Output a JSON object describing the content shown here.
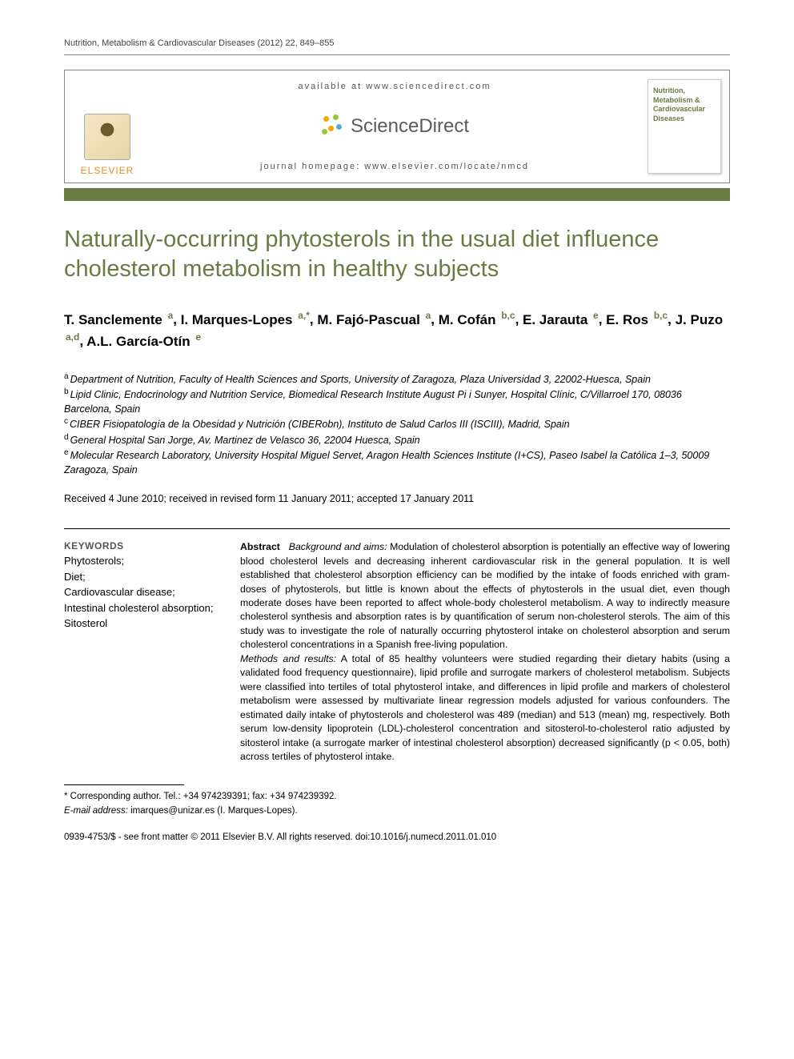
{
  "running_head": "Nutrition, Metabolism & Cardiovascular Diseases (2012) 22, 849–855",
  "masthead": {
    "available_line": "available at www.sciencedirect.com",
    "sd_word": "ScienceDirect",
    "homepage_line": "journal homepage: www.elsevier.com/locate/nmcd",
    "elsevier_word": "ELSEVIER",
    "journal_cover_title": "Nutrition, Metabolism & Cardiovascular Diseases"
  },
  "article": {
    "title": "Naturally-occurring phytosterols in the usual diet influence cholesterol metabolism in healthy subjects",
    "authors_html_parts": [
      {
        "name": "T. Sanclemente",
        "sup": "a"
      },
      {
        "name": "I. Marques-Lopes",
        "sup": "a,*"
      },
      {
        "name": "M. Fajó-Pascual",
        "sup": "a"
      },
      {
        "name": "M. Cofán",
        "sup": "b,c"
      },
      {
        "name": "E. Jarauta",
        "sup": "e"
      },
      {
        "name": "E. Ros",
        "sup": "b,c"
      },
      {
        "name": "J. Puzo",
        "sup": "a,d"
      },
      {
        "name": "A.L. García-Otín",
        "sup": "e"
      }
    ],
    "affiliations": [
      {
        "key": "a",
        "text": "Department of Nutrition, Faculty of Health Sciences and Sports, University of Zaragoza, Plaza Universidad 3, 22002-Huesca, Spain"
      },
      {
        "key": "b",
        "text": "Lipid Clinic, Endocrinology and Nutrition Service, Biomedical Research Institute August Pi i Sunyer, Hospital Clínic, C/Villarroel 170, 08036 Barcelona, Spain"
      },
      {
        "key": "c",
        "text": "CIBER Fisiopatología de la Obesidad y Nutrición (CIBERobn), Instituto de Salud Carlos III (ISCIII), Madrid, Spain"
      },
      {
        "key": "d",
        "text": "General Hospital San Jorge, Av. Martinez de Velasco 36, 22004 Huesca, Spain"
      },
      {
        "key": "e",
        "text": "Molecular Research Laboratory, University Hospital Miguel Servet, Aragon Health Sciences Institute (I+CS), Paseo Isabel la Católica 1–3, 50009 Zaragoza, Spain"
      }
    ],
    "history": "Received 4 June 2010; received in revised form 11 January 2011; accepted 17 January 2011",
    "keywords_head": "KEYWORDS",
    "keywords": "Phytosterols;\nDiet;\nCardiovascular disease;\nIntestinal cholesterol absorption;\nSitosterol",
    "abstract": {
      "label": "Abstract",
      "bg_label": "Background and aims:",
      "bg_text": " Modulation of cholesterol absorption is potentially an effective way of lowering blood cholesterol levels and decreasing inherent cardiovascular risk in the general population. It is well established that cholesterol absorption efficiency can be modified by the intake of foods enriched with gram-doses of phytosterols, but little is known about the effects of phytosterols in the usual diet, even though moderate doses have been reported to affect whole-body cholesterol metabolism. A way to indirectly measure cholesterol synthesis and absorption rates is by quantification of serum non-cholesterol sterols. The aim of this study was to investigate the role of naturally occurring phytosterol intake on cholesterol absorption and serum cholesterol concentrations in a Spanish free-living population.",
      "mr_label": "Methods and results:",
      "mr_text": " A total of 85 healthy volunteers were studied regarding their dietary habits (using a validated food frequency questionnaire), lipid profile and surrogate markers of cholesterol metabolism. Subjects were classified into tertiles of total phytosterol intake, and differences in lipid profile and markers of cholesterol metabolism were assessed by multivariate linear regression models adjusted for various confounders. The estimated daily intake of phytosterols and cholesterol was 489 (median) and 513 (mean) mg, respectively. Both serum low-density lipoprotein (LDL)-cholesterol concentration and sitosterol-to-cholesterol ratio adjusted by sitosterol intake (a surrogate marker of intestinal cholesterol absorption) decreased significantly (p < 0.05, both) across tertiles of phytosterol intake."
    }
  },
  "footnotes": {
    "corresponding": "* Corresponding author. Tel.: +34 974239391; fax: +34 974239392.",
    "email_label": "E-mail address:",
    "email_value": "imarques@unizar.es",
    "email_person": " (I. Marques-Lopes)."
  },
  "copyright": {
    "line1": "0939-4753/$ - see front matter © 2011 Elsevier B.V. All rights reserved.",
    "doi": "doi:10.1016/j.numecd.2011.01.010"
  },
  "colors": {
    "accent": "#6a7a43",
    "text": "#000000",
    "muted": "#555555"
  }
}
